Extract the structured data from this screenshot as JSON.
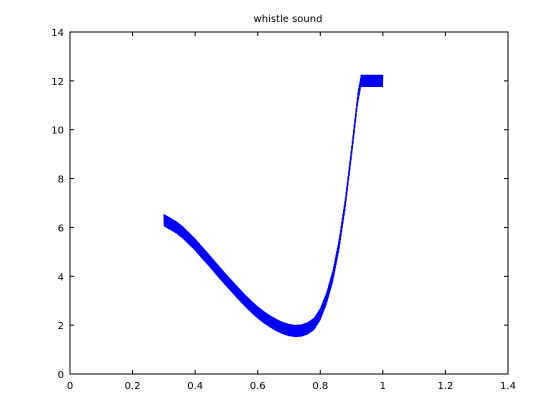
{
  "chart_data": {
    "type": "line",
    "title": "whistle sound",
    "xlabel": "",
    "ylabel": "",
    "xlim": [
      0,
      1.4
    ],
    "ylim": [
      0,
      14
    ],
    "xticks": [
      "0",
      "0.2",
      "0.4",
      "0.6",
      "0.8",
      "1",
      "1.2",
      "1.4"
    ],
    "yticks": [
      "0",
      "2",
      "4",
      "6",
      "8",
      "10",
      "12",
      "14"
    ],
    "grid": false,
    "legend": "none",
    "series_color": "#0000ff",
    "series": [
      {
        "x": [
          0.3,
          0.32,
          0.34,
          0.36,
          0.38,
          0.4,
          0.42,
          0.44,
          0.46,
          0.48,
          0.5,
          0.52,
          0.54,
          0.56,
          0.58,
          0.6,
          0.62,
          0.64,
          0.66,
          0.68,
          0.7,
          0.72,
          0.74,
          0.76,
          0.78,
          0.8,
          0.82,
          0.84,
          0.86,
          0.88,
          0.9,
          0.92,
          0.93,
          0.94,
          0.96,
          0.98,
          1.0
        ],
        "y": [
          6.3,
          6.15,
          6.0,
          5.8,
          5.55,
          5.3,
          5.0,
          4.72,
          4.42,
          4.12,
          3.83,
          3.55,
          3.27,
          3.0,
          2.75,
          2.52,
          2.32,
          2.15,
          2.0,
          1.88,
          1.8,
          1.76,
          1.78,
          1.87,
          2.05,
          2.45,
          3.1,
          4.0,
          5.3,
          7.0,
          9.1,
          11.3,
          12.0,
          12.0,
          12.0,
          12.0,
          12.0
        ],
        "oscillation_amplitude": 0.25
      }
    ]
  }
}
